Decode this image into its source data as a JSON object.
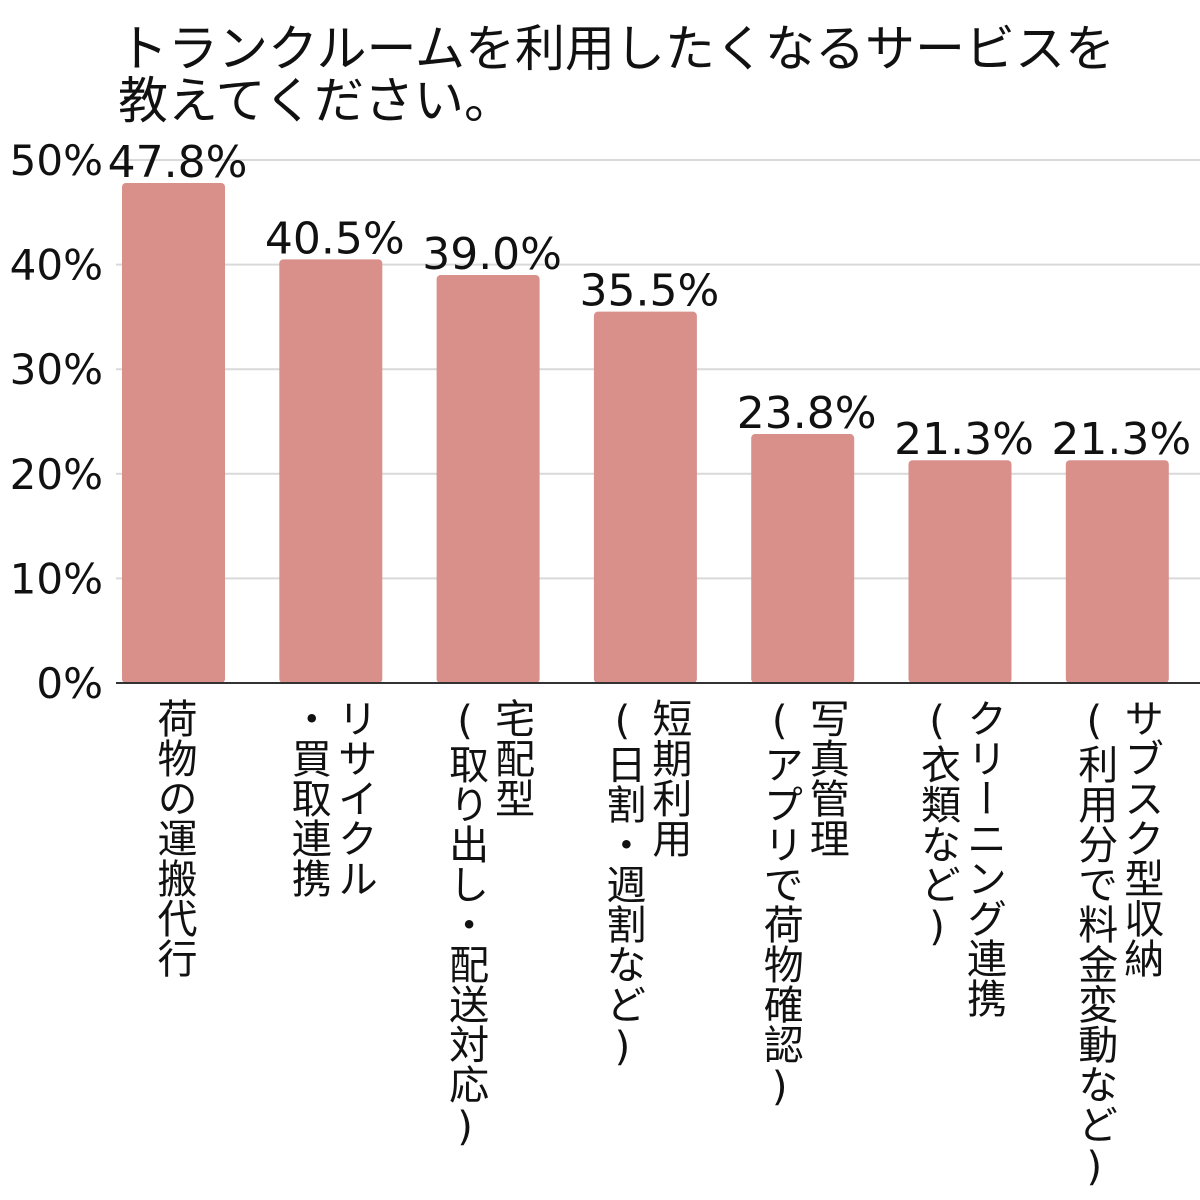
{
  "chart_data": {
    "type": "bar",
    "title": [
      "トランクルームを利用したくなるサービスを",
      "教えてください。"
    ],
    "categories": [
      [
        "荷物の運搬代行"
      ],
      [
        "リサイクル",
        "・買取連携"
      ],
      [
        "宅配型",
        "(取り出し・配送対応)"
      ],
      [
        "短期利用",
        "(日割・週割など)"
      ],
      [
        "写真管理",
        "(アプリで荷物確認)"
      ],
      [
        "クリーニング連携",
        "(衣類など)"
      ],
      [
        "サブスク型収納",
        "(利用分で料金変動など)"
      ]
    ],
    "values": [
      47.8,
      40.5,
      39.0,
      35.5,
      23.8,
      21.3,
      21.3
    ],
    "data_labels": [
      "47.8%",
      "40.5%",
      "39.0%",
      "35.5%",
      "23.8%",
      "21.3%",
      "21.3%"
    ],
    "yticks": [
      "0%",
      "10%",
      "20%",
      "30%",
      "40%",
      "50%"
    ],
    "ylim": [
      0,
      50
    ],
    "xlabel": "",
    "ylabel": "",
    "grid": true,
    "legend": "none",
    "colors": {
      "bar": "#d9908b",
      "grid": "#d9d9d9",
      "axis": "#333333",
      "text": "#111111"
    }
  }
}
